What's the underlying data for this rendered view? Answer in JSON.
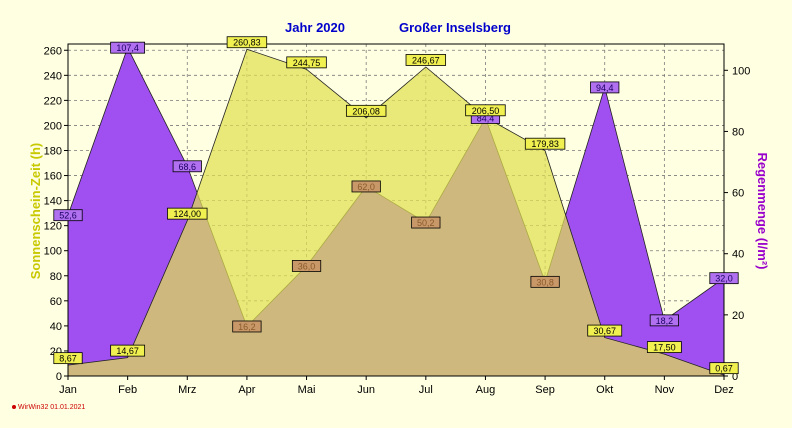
{
  "chart_data": {
    "type": "area",
    "title": "Jahr  2020",
    "subtitle": "Großer Inselsberg",
    "categories": [
      "Jan",
      "Feb",
      "Mrz",
      "Apr",
      "Mai",
      "Jun",
      "Jul",
      "Aug",
      "Sep",
      "Okt",
      "Nov",
      "Dez"
    ],
    "left_axis": {
      "label": "Sonnenschein-Zeit  (h)",
      "ylim": [
        0,
        265
      ],
      "ticks": [
        0,
        20,
        40,
        60,
        80,
        100,
        120,
        140,
        160,
        180,
        200,
        220,
        240,
        260
      ]
    },
    "right_axis": {
      "label": "Regenmenge  (l/m²)",
      "ylim": [
        0,
        108.6
      ],
      "ticks": [
        0,
        20,
        40,
        60,
        80,
        100
      ]
    },
    "series": [
      {
        "axis": "left",
        "color": "#e0e050",
        "values": [
          8.67,
          14.67,
          124.0,
          260.83,
          244.75,
          206.08,
          246.67,
          206.5,
          179.83,
          30.67,
          17.5,
          0.67
        ],
        "labels": [
          "8,67",
          "14,67",
          "124,00",
          "260,83",
          "244,75",
          "206,08",
          "246,67",
          "206,50",
          "179,83",
          "30,67",
          "17,50",
          "0,67"
        ]
      },
      {
        "axis": "right",
        "color": "#a050f0",
        "values": [
          52.6,
          107.4,
          68.6,
          16.2,
          36.0,
          62.0,
          50.2,
          84.4,
          30.8,
          94.4,
          18.2,
          32.0
        ],
        "labels": [
          "52,6",
          "107,4",
          "68,6",
          "16,2",
          "36,0",
          "62,0",
          "50,2",
          "84,4",
          "30,8",
          "94,4",
          "18,2",
          "32,0"
        ]
      }
    ],
    "grid": true,
    "footer": "WirWin32  01.01.2021"
  }
}
